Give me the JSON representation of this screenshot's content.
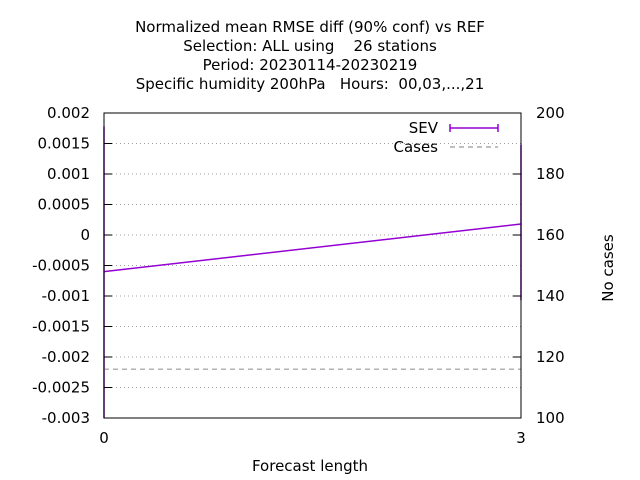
{
  "chart_data": {
    "type": "line",
    "title": [
      "Normalized mean RMSE diff (90% conf) vs REF",
      "Selection: ALL using    26 stations",
      "Period: 20230114-20230219",
      "Specific humidity 200hPa   Hours:  00,03,...,21"
    ],
    "xlabel": "Forecast length",
    "ylabel": "",
    "y2label": "No cases",
    "x_ticks": [
      "0",
      "3"
    ],
    "xlim": [
      0,
      3
    ],
    "y_ticks": [
      "0.002",
      "0.0015",
      "0.001",
      "0.0005",
      "0",
      "-0.0005",
      "-0.001",
      "-0.0015",
      "-0.002",
      "-0.0025",
      "-0.003"
    ],
    "ylim": [
      -0.003,
      0.002
    ],
    "y2_ticks": [
      "200",
      "180",
      "160",
      "140",
      "120",
      "100"
    ],
    "y2lim": [
      100,
      200
    ],
    "grid": "horizontal dotted",
    "legend_position": "top-right",
    "series": [
      {
        "name": "SEV",
        "axis": "y1",
        "color": "#9400d3",
        "style": "line-with-errorbars",
        "x": [
          0,
          3
        ],
        "y": [
          -0.0006,
          0.00018
        ],
        "err_low": [
          -0.003,
          -0.00107
        ],
        "err_high": [
          0.00178,
          0.00148
        ]
      },
      {
        "name": "Cases",
        "axis": "y2",
        "color": "#999999",
        "style": "dashed",
        "x": [
          0,
          3
        ],
        "y": [
          116,
          116
        ]
      }
    ]
  }
}
